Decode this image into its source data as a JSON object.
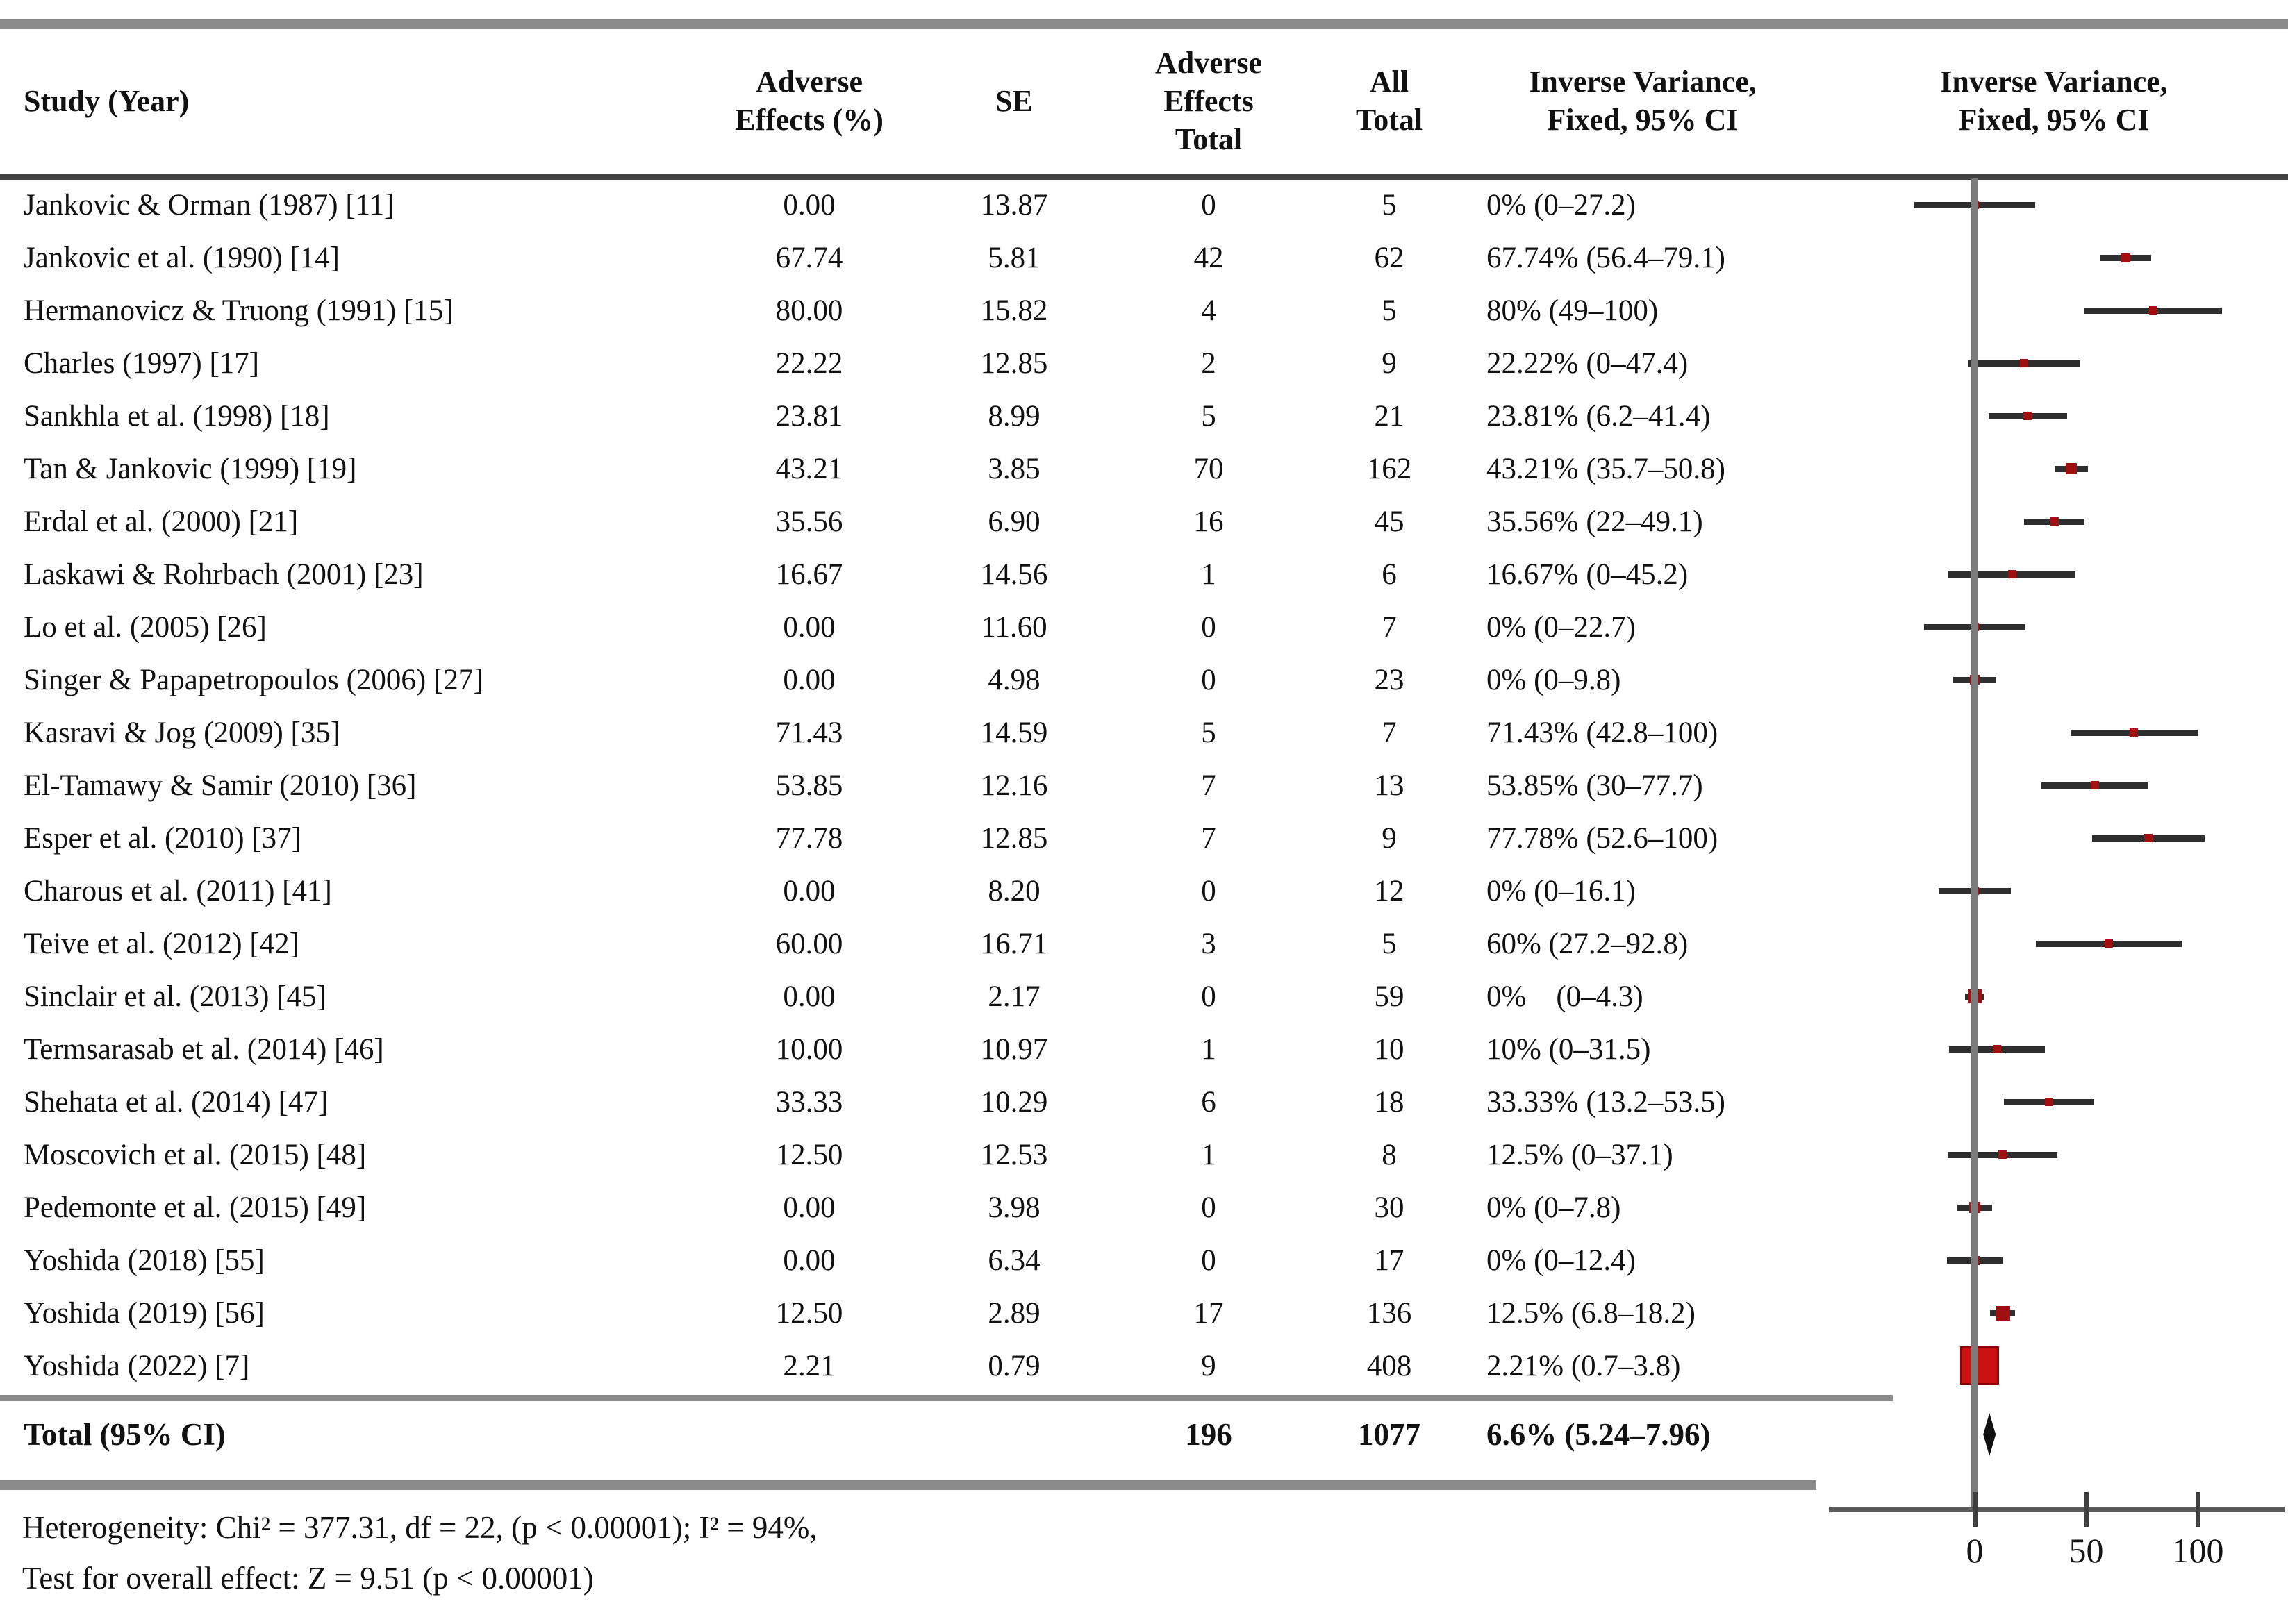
{
  "chart_data": {
    "type": "scatter",
    "subtype": "forest-plot",
    "title": "Adverse Effects (%) — Inverse Variance, Fixed, 95% CI",
    "x_axis": {
      "ticks": [
        0,
        50,
        100
      ],
      "range_shown": [
        -35,
        140
      ],
      "grid": false
    },
    "legend_position": "none",
    "points": [
      {
        "study": "Jankovic & Orman (1987) [11]",
        "ae": "0.00",
        "se": "13.87",
        "aet": "0",
        "allt": "5",
        "ci": "0% (0–27.2)",
        "effect": 0,
        "se_num": 13.87
      },
      {
        "study": "Jankovic et al. (1990) [14]",
        "ae": "67.74",
        "se": "5.81",
        "aet": "42",
        "allt": "62",
        "ci": "67.74% (56.4–79.1)",
        "effect": 67.74,
        "se_num": 5.81
      },
      {
        "study": "Hermanovicz & Truong (1991) [15]",
        "ae": "80.00",
        "se": "15.82",
        "aet": "4",
        "allt": "5",
        "ci": "80% (49–100)",
        "effect": 80,
        "se_num": 15.82
      },
      {
        "study": "Charles (1997) [17]",
        "ae": "22.22",
        "se": "12.85",
        "aet": "2",
        "allt": "9",
        "ci": "22.22% (0–47.4)",
        "effect": 22.22,
        "se_num": 12.85
      },
      {
        "study": "Sankhla et al. (1998) [18]",
        "ae": "23.81",
        "se": "8.99",
        "aet": "5",
        "allt": "21",
        "ci": "23.81% (6.2–41.4)",
        "effect": 23.81,
        "se_num": 8.99
      },
      {
        "study": "Tan & Jankovic (1999) [19]",
        "ae": "43.21",
        "se": "3.85",
        "aet": "70",
        "allt": "162",
        "ci": "43.21% (35.7–50.8)",
        "effect": 43.21,
        "se_num": 3.85
      },
      {
        "study": "Erdal et al. (2000) [21]",
        "ae": "35.56",
        "se": "6.90",
        "aet": "16",
        "allt": "45",
        "ci": "35.56% (22–49.1)",
        "effect": 35.56,
        "se_num": 6.9
      },
      {
        "study": "Laskawi & Rohrbach (2001) [23]",
        "ae": "16.67",
        "se": "14.56",
        "aet": "1",
        "allt": "6",
        "ci": "16.67% (0–45.2)",
        "effect": 16.67,
        "se_num": 14.56
      },
      {
        "study": "Lo et al. (2005) [26]",
        "ae": "0.00",
        "se": "11.60",
        "aet": "0",
        "allt": "7",
        "ci": "0% (0–22.7)",
        "effect": 0,
        "se_num": 11.6
      },
      {
        "study": "Singer & Papapetropoulos (2006) [27]",
        "ae": "0.00",
        "se": "4.98",
        "aet": "0",
        "allt": "23",
        "ci": "0% (0–9.8)",
        "effect": 0,
        "se_num": 4.98
      },
      {
        "study": "Kasravi & Jog (2009) [35]",
        "ae": "71.43",
        "se": "14.59",
        "aet": "5",
        "allt": "7",
        "ci": "71.43% (42.8–100)",
        "effect": 71.43,
        "se_num": 14.59
      },
      {
        "study": "El-Tamawy & Samir (2010) [36]",
        "ae": "53.85",
        "se": "12.16",
        "aet": "7",
        "allt": "13",
        "ci": "53.85% (30–77.7)",
        "effect": 53.85,
        "se_num": 12.16
      },
      {
        "study": "Esper et al. (2010) [37]",
        "ae": "77.78",
        "se": "12.85",
        "aet": "7",
        "allt": "9",
        "ci": "77.78% (52.6–100)",
        "effect": 77.78,
        "se_num": 12.85
      },
      {
        "study": "Charous et al. (2011) [41]",
        "ae": "0.00",
        "se": "8.20",
        "aet": "0",
        "allt": "12",
        "ci": "0% (0–16.1)",
        "effect": 0,
        "se_num": 8.2
      },
      {
        "study": "Teive et al. (2012) [42]",
        "ae": "60.00",
        "se": "16.71",
        "aet": "3",
        "allt": "5",
        "ci": "60% (27.2–92.8)",
        "effect": 60,
        "se_num": 16.71
      },
      {
        "study": "Sinclair et al. (2013) [45]",
        "ae": "0.00",
        "se": "2.17",
        "aet": "0",
        "allt": "59",
        "ci": "0%    (0–4.3)",
        "effect": 0,
        "se_num": 2.17
      },
      {
        "study": "Termsarasab et al. (2014) [46]",
        "ae": "10.00",
        "se": "10.97",
        "aet": "1",
        "allt": "10",
        "ci": "10% (0–31.5)",
        "effect": 10,
        "se_num": 10.97
      },
      {
        "study": "Shehata et al. (2014) [47]",
        "ae": "33.33",
        "se": "10.29",
        "aet": "6",
        "allt": "18",
        "ci": "33.33% (13.2–53.5)",
        "effect": 33.33,
        "se_num": 10.29
      },
      {
        "study": "Moscovich et al. (2015) [48]",
        "ae": "12.50",
        "se": "12.53",
        "aet": "1",
        "allt": "8",
        "ci": "12.5% (0–37.1)",
        "effect": 12.5,
        "se_num": 12.53
      },
      {
        "study": "Pedemonte et al. (2015) [49]",
        "ae": "0.00",
        "se": "3.98",
        "aet": "0",
        "allt": "30",
        "ci": "0% (0–7.8)",
        "effect": 0,
        "se_num": 3.98
      },
      {
        "study": "Yoshida (2018) [55]",
        "ae": "0.00",
        "se": "6.34",
        "aet": "0",
        "allt": "17",
        "ci": "0% (0–12.4)",
        "effect": 0,
        "se_num": 6.34
      },
      {
        "study": "Yoshida (2019) [56]",
        "ae": "12.50",
        "se": "2.89",
        "aet": "17",
        "allt": "136",
        "ci": "12.5% (6.8–18.2)",
        "effect": 12.5,
        "se_num": 2.89
      },
      {
        "study": "Yoshida (2022) [7]",
        "ae": "2.21",
        "se": "0.79",
        "aet": "9",
        "allt": "408",
        "ci": "2.21% (0.7–3.8)",
        "effect": 2.21,
        "se_num": 0.79
      }
    ],
    "total": {
      "label": "Total (95% CI)",
      "events": "196",
      "total": "1077",
      "ci_text": "6.6% (5.24–7.96)",
      "effect_pct": 6.6
    },
    "heterogeneity": "Heterogeneity: Chi² = 377.31, df = 22, (p < 0.00001); I² = 94%,",
    "overall_effect": "Test for overall effect: Z = 9.51 (p < 0.00001)"
  },
  "table": {
    "headers": {
      "study": "Study (Year)",
      "adverse_effects_pct": "Adverse\nEffects (%)",
      "se": "SE",
      "adverse_effects_total": "Adverse\nEffects\nTotal",
      "all_total": "All\nTotal",
      "inverse_variance": "Inverse Variance,\nFixed, 95% CI",
      "inverse_variance_plot": "Inverse Variance,\nFixed, 95% CI"
    }
  },
  "colors": {
    "marker_red": "#a01010",
    "summary_square_red": "#cc1111",
    "ci_line_dark": "#2e2e2e",
    "rule_gray": "#8b8b8b",
    "rule_dark": "#424242",
    "axis_gray": "#7b7b7b",
    "diamond_black": "#101010"
  }
}
